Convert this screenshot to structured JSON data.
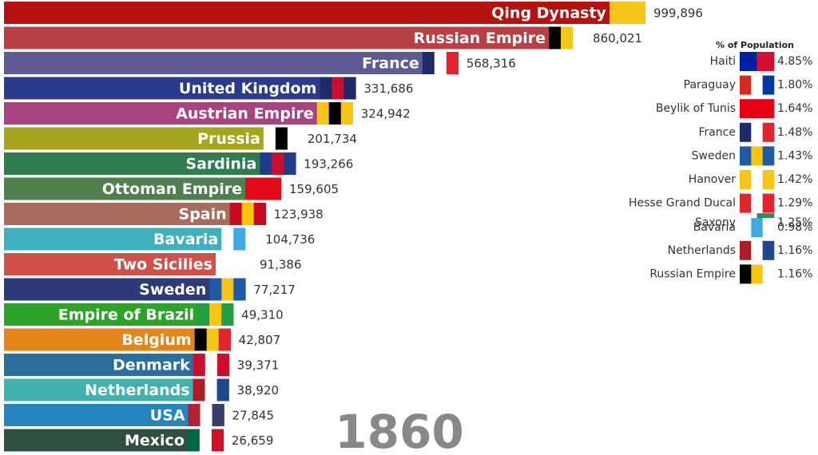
{
  "chart_data": [
    {
      "type": "bar",
      "orientation": "horizontal",
      "categories": [
        "Qing Dynasty",
        "Russian Empire",
        "France",
        "United Kingdom",
        "Austrian Empire",
        "Prussia",
        "Sardinia",
        "Ottoman Empire",
        "Spain",
        "Bavaria",
        "Two Sicilies",
        "Sweden",
        "Empire of Brazil",
        "Belgium",
        "Denmark",
        "Netherlands",
        "USA",
        "Mexico"
      ],
      "values": [
        999896,
        860021,
        568316,
        331686,
        324942,
        201734,
        193266,
        159605,
        123938,
        104736,
        91386,
        77217,
        49310,
        42807,
        39371,
        38920,
        27845,
        26659
      ],
      "value_labels": [
        "999,896",
        "860,021",
        "568,316",
        "331,686",
        "324,942",
        "201,734",
        "193,266",
        "159,605",
        "123,938",
        "104,736",
        "91,386",
        "77,217",
        "49,310",
        "42,807",
        "39,371",
        "38,920",
        "27,845",
        "26,659"
      ],
      "colors": [
        "#b5120f",
        "#b84045",
        "#5e5a94",
        "#2a3a8c",
        "#a8437f",
        "#a5a51e",
        "#2f7d4e",
        "#4f7f4d",
        "#a86c5e",
        "#3fb0c0",
        "#d0504c",
        "#2d3a78",
        "#2ea32a",
        "#e5861c",
        "#2c6e9c",
        "#3fb2ae",
        "#2584bd",
        "#2f4f40"
      ],
      "flag_colors": [
        [
          "#f5c518"
        ],
        [
          "#000000",
          "#f5c518",
          "#ffffff"
        ],
        [
          "#1f2a6b",
          "#ffffff",
          "#e0252f"
        ],
        [
          "#1f2a6b",
          "#c8102e",
          "#1f2a6b"
        ],
        [
          "#f5c518",
          "#000000",
          "#f5c518"
        ],
        [
          "#ffffff",
          "#000000",
          "#ffffff"
        ],
        [
          "#1f3b8c",
          "#c8102e",
          "#1f3b8c"
        ],
        [
          "#e30a17"
        ],
        [
          "#c60b1e",
          "#ffc400",
          "#c60b1e"
        ],
        [
          "#ffffff",
          "#3fa9e0",
          "#ffffff"
        ],
        [
          "#ffffff"
        ],
        [
          "#1f5aa6",
          "#f5c518",
          "#1f5aa6"
        ],
        [
          "#229e45",
          "#f5c518",
          "#229e45"
        ],
        [
          "#000000",
          "#f5c518",
          "#e0252f"
        ],
        [
          "#c8102e",
          "#ffffff",
          "#c8102e"
        ],
        [
          "#ae1c28",
          "#ffffff",
          "#21468b"
        ],
        [
          "#b22234",
          "#ffffff",
          "#3c3b6e"
        ],
        [
          "#006847",
          "#ffffff",
          "#ce1126"
        ]
      ],
      "xlim": [
        -480000,
        1000000
      ],
      "year_label": "1860"
    },
    {
      "type": "list",
      "title": "% of Population",
      "categories": [
        "Haiti",
        "Paraguay",
        "Beylik of Tunis",
        "France",
        "Sweden",
        "Hanover",
        "Hesse Grand Ducal",
        "Saxony",
        "Bavaria",
        "Netherlands",
        "Russian Empire"
      ],
      "values": [
        4.85,
        1.8,
        1.64,
        1.48,
        1.43,
        1.42,
        1.29,
        1.25,
        0.98,
        1.16,
        1.16
      ],
      "value_labels": [
        "4.85%",
        "1.80%",
        "1.64%",
        "1.48%",
        "1.43%",
        "1.42%",
        "1.29%",
        "1.25%",
        "0.98%",
        "1.16%",
        "1.16%"
      ],
      "flag_colors": [
        [
          "#00209f",
          "#d21034"
        ],
        [
          "#d52b1e",
          "#ffffff",
          "#0038a8"
        ],
        [
          "#e70013"
        ],
        [
          "#1f2a6b",
          "#ffffff",
          "#e0252f"
        ],
        [
          "#1f5aa6",
          "#f5c518",
          "#1f5aa6"
        ],
        [
          "#f5c518",
          "#ffffff",
          "#f5c518"
        ],
        [
          "#e0252f",
          "#ffffff",
          "#e0252f"
        ],
        [
          "#ffffff",
          "#2e8b57"
        ],
        [
          "#ffffff",
          "#3fa9e0",
          "#ffffff"
        ],
        [
          "#ae1c28",
          "#ffffff",
          "#21468b"
        ],
        [
          "#000000",
          "#f5c518",
          "#ffffff"
        ]
      ]
    }
  ]
}
